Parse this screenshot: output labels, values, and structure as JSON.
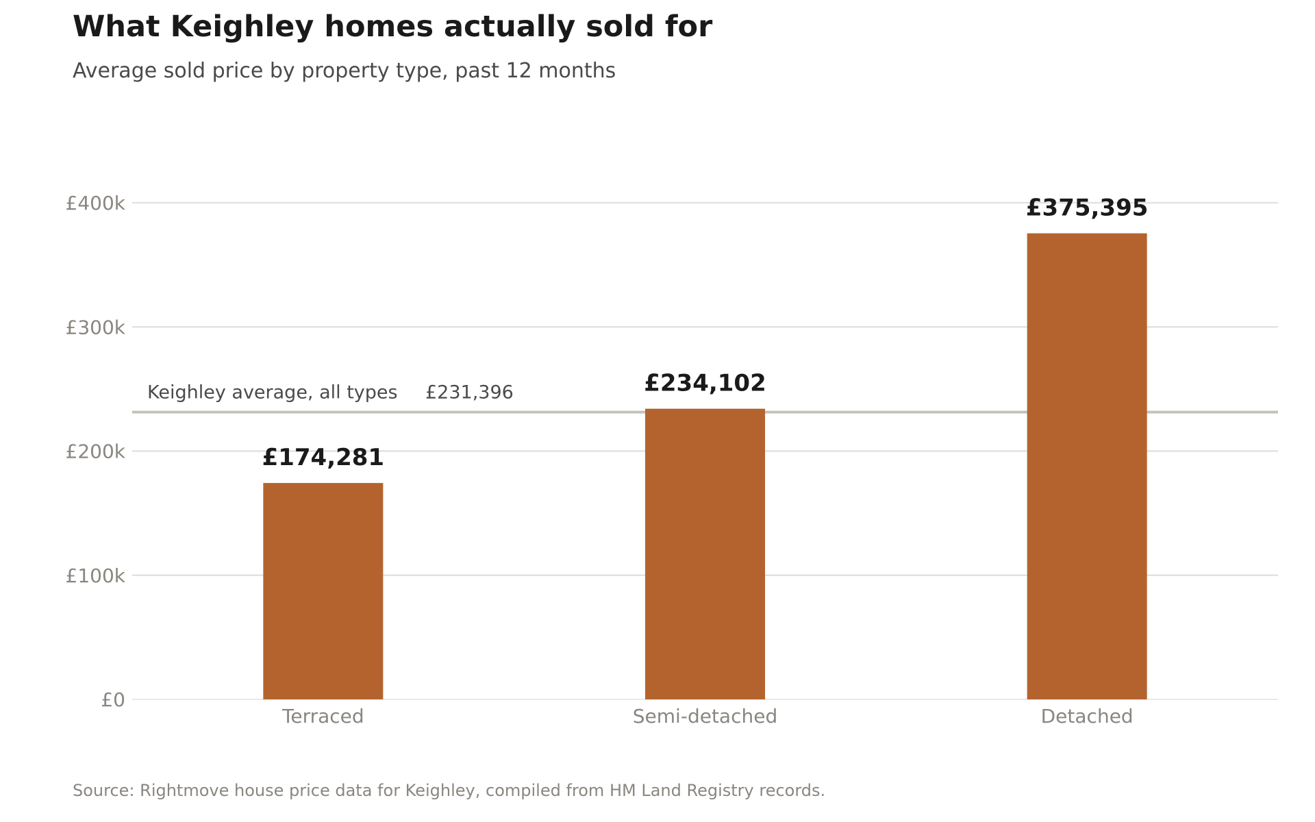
{
  "header": {
    "title": "What Keighley homes actually sold for",
    "subtitle": "Average sold price by property type, past 12 months"
  },
  "footer": {
    "source": "Source: Rightmove house price data for Keighley, compiled from HM Land Registry records."
  },
  "colors": {
    "bar": "#b5632e",
    "grid": "#e2e2e2",
    "reference_line": "#c4c2b8",
    "tick_text": "#8a8680",
    "label_text": "#1a1a1a"
  },
  "chart_data": {
    "type": "bar",
    "categories": [
      "Terraced",
      "Semi-detached",
      "Detached"
    ],
    "values": [
      174281,
      234102,
      375395
    ],
    "value_labels": [
      "£174,281",
      "£234,102",
      "£375,395"
    ],
    "title": "What Keighley homes actually sold for",
    "subtitle": "Average sold price by property type, past 12 months",
    "xlabel": "",
    "ylabel": "",
    "ylim": [
      0,
      400000
    ],
    "yticks": [
      0,
      100000,
      200000,
      300000,
      400000
    ],
    "ytick_labels": [
      "£0",
      "£100k",
      "£200k",
      "£300k",
      "£400k"
    ],
    "grid": true,
    "legend": "none",
    "reference_line": {
      "value": 231396,
      "label": "Keighley average, all types",
      "value_label": "£231,396"
    }
  }
}
